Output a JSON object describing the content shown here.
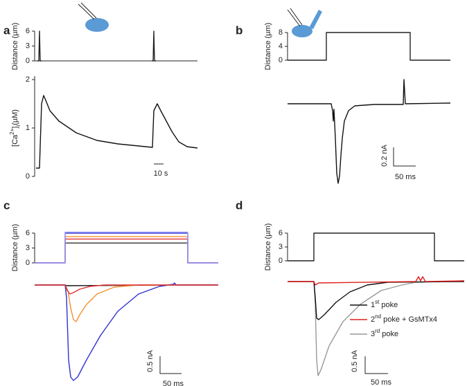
{
  "panels": [
    {
      "label": "a",
      "stim_label": "Distance (µm)",
      "stim_ylim": [
        0,
        6
      ],
      "stim_yticks": [
        0,
        3,
        6
      ],
      "stim_kind": "spike",
      "steps": [
        {
          "color": "#222222",
          "value": 6
        },
        {
          "color": "#222222",
          "value": 6
        }
      ],
      "resp_label": [
        "[Ca",
        "2+",
        "]",
        "i",
        "(µM)"
      ],
      "resp_ylim": [
        0,
        2
      ],
      "resp_yticks": [
        0,
        1,
        2
      ],
      "scale_x": "10 s"
    },
    {
      "label": "b",
      "stim_label": "Distance (µm)",
      "stim_ylim": [
        0,
        8
      ],
      "stim_yticks": [
        0,
        4,
        8
      ],
      "stim_kind": "step",
      "steps": [
        {
          "color": "#222222",
          "value": 8
        }
      ],
      "scale_y": "0.2 nA",
      "scale_x": "50 ms"
    },
    {
      "label": "c",
      "stim_label": "Distance (µm)",
      "stim_ylim": [
        0,
        6
      ],
      "stim_yticks": [
        0,
        3,
        6
      ],
      "stim_kind": "step",
      "steps": [
        {
          "color": "#333333",
          "value": 4
        },
        {
          "color": "#e03030",
          "value": 4.8
        },
        {
          "color": "#f09030",
          "value": 5.3
        },
        {
          "color": "#3030d0",
          "value": 6
        },
        {
          "color": "#a0a0ff",
          "value": 6.2
        }
      ],
      "scale_y": "0.5 nA",
      "scale_x": "50 ms"
    },
    {
      "label": "d",
      "stim_label": "Distance (µm)",
      "stim_ylim": [
        0,
        6
      ],
      "stim_yticks": [
        0,
        3,
        6
      ],
      "stim_kind": "step",
      "steps": [
        {
          "color": "#222222",
          "value": 6
        }
      ],
      "legend": [
        {
          "color": "#111111",
          "parts": [
            "1",
            "st",
            " poke"
          ]
        },
        {
          "color": "#e02020",
          "parts": [
            "2",
            "nd",
            " poke + GsMTx4"
          ]
        },
        {
          "color": "#999999",
          "parts": [
            "3",
            "rd",
            " poke"
          ]
        }
      ],
      "scale_y": "0.5 nA",
      "scale_x": "50 ms"
    }
  ]
}
